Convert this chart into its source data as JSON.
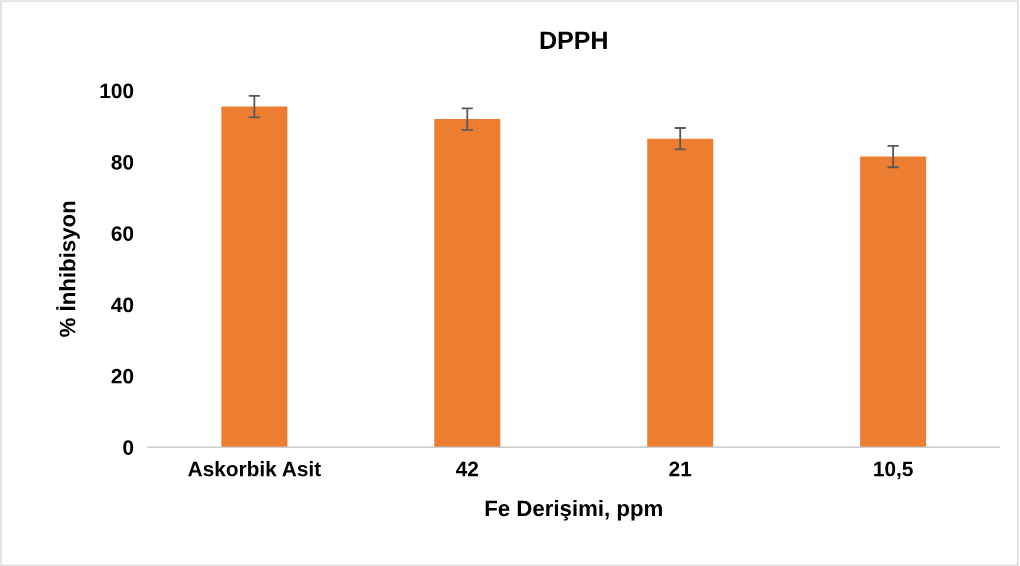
{
  "chart_data": {
    "type": "bar",
    "title": "DPPH",
    "xlabel": "Fe Derişimi, ppm",
    "ylabel": "% İnhibisyon",
    "categories": [
      "Askorbik Asit",
      "42",
      "21",
      "10,5"
    ],
    "values": [
      95.5,
      92,
      86.5,
      81.5
    ],
    "errors": [
      3,
      3,
      3,
      3
    ],
    "color": "#ed7d31",
    "ylim": [
      0,
      100
    ],
    "yticks": [
      0,
      20,
      40,
      60,
      80,
      100
    ],
    "grid": false,
    "legend": false
  }
}
